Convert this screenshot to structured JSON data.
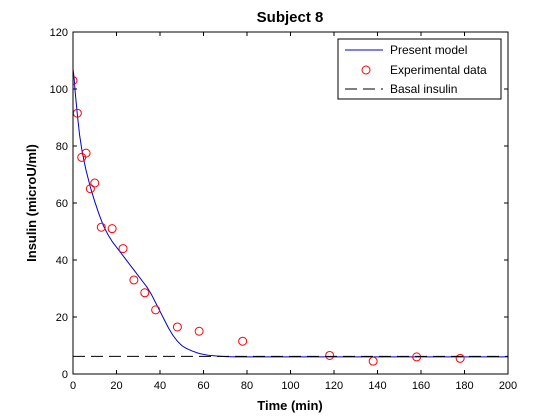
{
  "chart_data": {
    "type": "line",
    "title": "Subject 8",
    "xlabel": "Time (min)",
    "ylabel": "Insulin (microU/ml)",
    "xlim": [
      0,
      200
    ],
    "ylim": [
      0,
      120
    ],
    "xticks": [
      0,
      20,
      40,
      60,
      80,
      100,
      120,
      140,
      160,
      180,
      200
    ],
    "yticks": [
      0,
      20,
      40,
      60,
      80,
      100,
      120
    ],
    "grid": false,
    "legend_position": "top-right",
    "series": [
      {
        "name": "Present model",
        "style": "solid-line",
        "color": "#0000cc",
        "x": [
          0,
          0.5,
          1,
          2,
          3,
          4,
          5,
          6,
          8,
          10,
          12,
          14,
          16,
          18,
          20,
          22,
          24,
          26,
          28,
          30,
          32,
          34,
          36,
          38,
          40,
          42,
          44,
          46,
          48,
          50,
          52,
          55,
          58,
          62,
          66,
          70,
          75,
          80,
          90,
          100,
          120,
          140,
          160,
          180,
          200
        ],
        "y": [
          107,
          104,
          99,
          91,
          84,
          79,
          75,
          71.5,
          65.5,
          60.5,
          56,
          52,
          49,
          46.5,
          44.5,
          42.5,
          40.5,
          38.5,
          36.5,
          34.5,
          32.5,
          30.5,
          28,
          25,
          22,
          19,
          16,
          13.5,
          11.5,
          10,
          9,
          8,
          7.2,
          6.6,
          6.3,
          6.1,
          6.0,
          6.0,
          6.0,
          6.0,
          6.0,
          6.0,
          6.0,
          6.0,
          6.0
        ]
      },
      {
        "name": "Experimental data",
        "style": "circle-markers",
        "color": "#ff0000",
        "x": [
          0,
          2,
          4,
          6,
          8,
          10,
          13,
          18,
          23,
          28,
          33,
          38,
          48,
          58,
          78,
          118,
          138,
          158,
          178
        ],
        "y": [
          103,
          91.5,
          76,
          77.5,
          65,
          67,
          51.5,
          51,
          44,
          33,
          28.5,
          22.5,
          16.5,
          15,
          11.5,
          6.5,
          4.5,
          6,
          5.5
        ]
      },
      {
        "name": "Basal insulin",
        "style": "dashed-line",
        "color": "#000000",
        "x": [
          0,
          200
        ],
        "y": [
          6.2,
          6.2
        ]
      }
    ]
  }
}
